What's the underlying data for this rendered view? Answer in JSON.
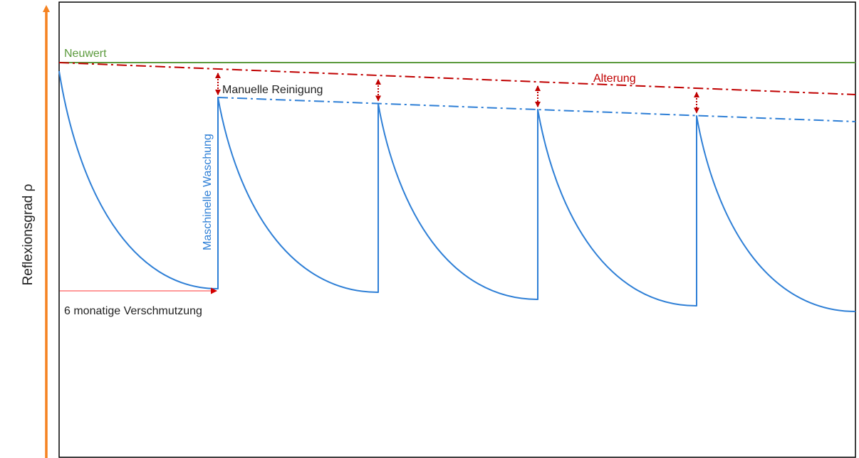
{
  "labels": {
    "y_axis": "Reflexionsgrad   ρ",
    "new_value": "Neuwert",
    "aging": "Alterung",
    "manual_cleaning": "Manuelle Reinigung",
    "machine_washing": "Maschinelle Waschung",
    "soiling_period": "6 monatige Verschmutzung"
  },
  "colors": {
    "axis_arrow": "#f58220",
    "frame": "#000000",
    "new_value": "#5b9a3c",
    "aging": "#c00000",
    "reflectance": "#2e7fd6",
    "machine_washing": "#2e7fd6",
    "soiling_arrow": "#ff9a9a",
    "manual_cleaning_arrow": "#c00000",
    "text": "#222222"
  },
  "chart_data": {
    "type": "line",
    "title": "",
    "ylabel": "Reflexionsgrad   ρ",
    "xlabel": "",
    "cleaning_cycles": 5,
    "series": [
      {
        "name": "Neuwert",
        "style": "solid",
        "description_value": "constant"
      },
      {
        "name": "Alterung",
        "style": "dash-dot",
        "description_value": "declining"
      },
      {
        "style": "solid",
        "description_value": "periodic decay with resets"
      },
      {
        "style": "dash-dot",
        "description_value": "declining"
      }
    ],
    "annotations": [
      "Manuelle Reinigung",
      "Maschinelle Waschung",
      "6 monatige Verschmutzung"
    ]
  }
}
